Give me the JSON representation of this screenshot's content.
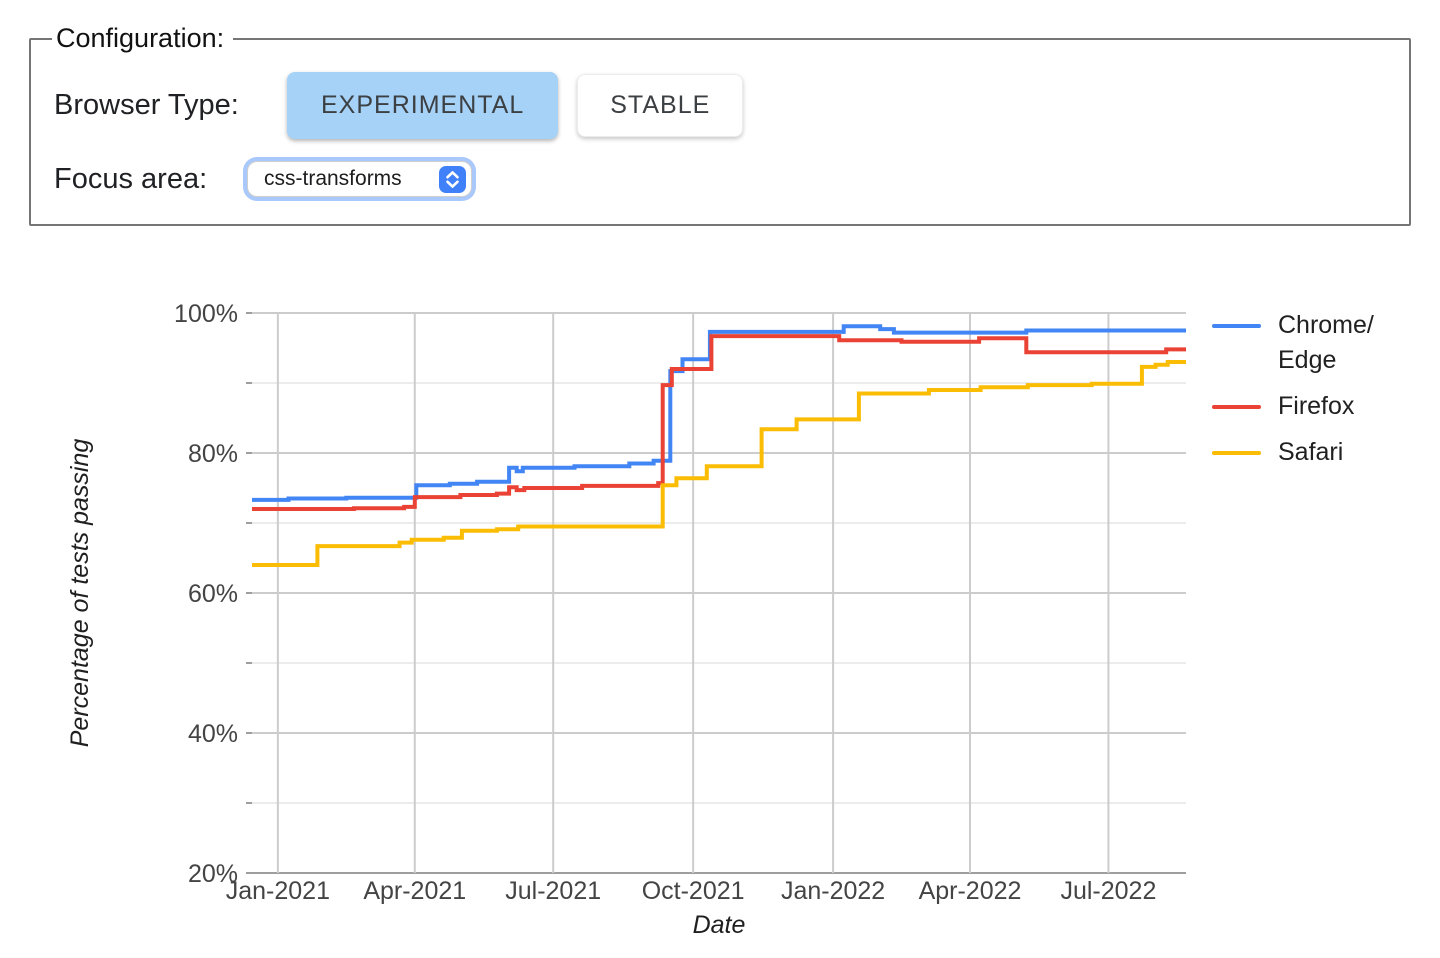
{
  "config": {
    "legend": "Configuration:",
    "browser_type_label": "Browser Type:",
    "buttons": {
      "experimental": "EXPERIMENTAL",
      "stable": "STABLE"
    },
    "browser_type_selected": "EXPERIMENTAL",
    "focus_area_label": "Focus area:",
    "focus_area_value": "css-transforms",
    "colors": {
      "selected_button_bg": "#a6d2f7",
      "focus_ring": "#a9c8fb",
      "stepper_blue": "#4080f8",
      "fieldset_border": "#757575"
    }
  },
  "chart_data": {
    "type": "line",
    "title": "",
    "xlabel": "Date",
    "ylabel": "Percentage of tests passing",
    "ylim": [
      20,
      100
    ],
    "x_range": [
      "2020-12-15",
      "2022-08-21"
    ],
    "grid": true,
    "legend_position": "right",
    "interpolation": "step-after",
    "y_ticks": [
      {
        "value": 100,
        "label": "100%"
      },
      {
        "value": 80,
        "label": "80%"
      },
      {
        "value": 60,
        "label": "60%"
      },
      {
        "value": 40,
        "label": "40%"
      },
      {
        "value": 20,
        "label": "20%"
      }
    ],
    "y_minor_ticks": [
      90,
      70,
      50,
      30
    ],
    "x_ticks": [
      {
        "date": "2021-01-01",
        "label": "Jan-2021"
      },
      {
        "date": "2021-04-01",
        "label": "Apr-2021"
      },
      {
        "date": "2021-07-01",
        "label": "Jul-2021"
      },
      {
        "date": "2021-10-01",
        "label": "Oct-2021"
      },
      {
        "date": "2022-01-01",
        "label": "Jan-2022"
      },
      {
        "date": "2022-04-01",
        "label": "Apr-2022"
      },
      {
        "date": "2022-07-01",
        "label": "Jul-2022"
      }
    ],
    "series": [
      {
        "name": "Chrome/Edge",
        "key": "chrome-edge",
        "color": "#4285F4",
        "points": [
          [
            "2020-12-15",
            73.3
          ],
          [
            "2021-01-08",
            73.5
          ],
          [
            "2021-02-15",
            73.6
          ],
          [
            "2021-04-02",
            75.4
          ],
          [
            "2021-04-24",
            75.6
          ],
          [
            "2021-05-12",
            75.9
          ],
          [
            "2021-06-02",
            77.9
          ],
          [
            "2021-06-07",
            77.4
          ],
          [
            "2021-06-11",
            77.9
          ],
          [
            "2021-07-15",
            78.1
          ],
          [
            "2021-08-20",
            78.5
          ],
          [
            "2021-09-05",
            78.9
          ],
          [
            "2021-09-16",
            91.7
          ],
          [
            "2021-09-24",
            93.4
          ],
          [
            "2021-10-12",
            97.3
          ],
          [
            "2022-01-08",
            98.1
          ],
          [
            "2022-02-01",
            97.7
          ],
          [
            "2022-02-10",
            97.2
          ],
          [
            "2022-05-08",
            97.5
          ],
          [
            "2022-08-21",
            97.5
          ]
        ]
      },
      {
        "name": "Firefox",
        "key": "firefox",
        "color": "#EA4335",
        "points": [
          [
            "2020-12-15",
            72.0
          ],
          [
            "2021-02-20",
            72.1
          ],
          [
            "2021-03-25",
            72.3
          ],
          [
            "2021-04-01",
            73.7
          ],
          [
            "2021-05-01",
            74.0
          ],
          [
            "2021-05-25",
            74.2
          ],
          [
            "2021-06-02",
            75.1
          ],
          [
            "2021-06-07",
            74.7
          ],
          [
            "2021-06-12",
            75.0
          ],
          [
            "2021-07-20",
            75.3
          ],
          [
            "2021-09-08",
            75.7
          ],
          [
            "2021-09-11",
            89.7
          ],
          [
            "2021-09-17",
            92.0
          ],
          [
            "2021-10-13",
            96.7
          ],
          [
            "2022-01-05",
            96.1
          ],
          [
            "2022-02-15",
            95.9
          ],
          [
            "2022-04-07",
            96.4
          ],
          [
            "2022-05-08",
            94.4
          ],
          [
            "2022-08-08",
            94.8
          ],
          [
            "2022-08-21",
            94.8
          ]
        ]
      },
      {
        "name": "Safari",
        "key": "safari",
        "color": "#FBBC04",
        "points": [
          [
            "2020-12-15",
            64.0
          ],
          [
            "2021-01-27",
            66.7
          ],
          [
            "2021-03-22",
            67.2
          ],
          [
            "2021-03-30",
            67.6
          ],
          [
            "2021-04-20",
            67.9
          ],
          [
            "2021-05-02",
            68.9
          ],
          [
            "2021-05-25",
            69.1
          ],
          [
            "2021-06-08",
            69.5
          ],
          [
            "2021-09-11",
            75.4
          ],
          [
            "2021-09-20",
            76.4
          ],
          [
            "2021-10-10",
            78.1
          ],
          [
            "2021-11-15",
            83.4
          ],
          [
            "2021-12-08",
            84.8
          ],
          [
            "2022-01-18",
            88.5
          ],
          [
            "2022-03-05",
            89.0
          ],
          [
            "2022-04-08",
            89.4
          ],
          [
            "2022-05-09",
            89.7
          ],
          [
            "2022-06-20",
            89.9
          ],
          [
            "2022-07-23",
            92.3
          ],
          [
            "2022-08-01",
            92.6
          ],
          [
            "2022-08-09",
            93.0
          ],
          [
            "2022-08-21",
            93.0
          ]
        ]
      }
    ],
    "style": {
      "grid_major": "#cccccc",
      "grid_minor": "#ececec",
      "baseline": "#9e9e9e",
      "tick_label_color": "#444444",
      "axis_title_color": "#1f1f1f",
      "legend_text_color": "#212121",
      "line_width": 4
    }
  }
}
